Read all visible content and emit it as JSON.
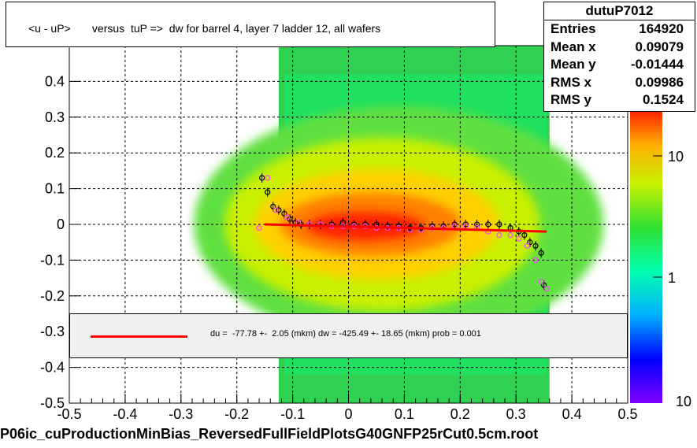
{
  "title": "<u - uP>       versus  tuP =>  dw for barrel 4, layer 7 ladder 12, all wafers",
  "stats": {
    "name": "dutuP7012",
    "rows": [
      {
        "label": "Entries",
        "value": "164920"
      },
      {
        "label": "Mean x",
        "value": "0.09079"
      },
      {
        "label": "Mean y",
        "value": "-0.01444"
      },
      {
        "label": "RMS x",
        "value": "0.09986"
      },
      {
        "label": "RMS y",
        "value": "0.1524"
      }
    ]
  },
  "fit": {
    "text": "du =  -77.78 +-  2.05 (mkm) dw = -425.49 +- 18.65 (mkm) prob = 0.001",
    "color": "#ff0000"
  },
  "footer": "P06ic_cuProductionMinBias_ReversedFullFieldPlotsG40GNFP25rCut0.5cm.root",
  "chart_data": {
    "type": "heatmap",
    "xlim": [
      -0.5,
      0.5
    ],
    "ylim": [
      -0.5,
      0.5
    ],
    "x_ticks": [
      "-0.5",
      "-0.4",
      "-0.3",
      "-0.2",
      "-0.1",
      "0",
      "0.1",
      "0.2",
      "0.3",
      "0.4",
      "0.5"
    ],
    "y_ticks": [
      "-0.5",
      "-0.4",
      "-0.3",
      "-0.2",
      "-0.1",
      "0",
      "0.1",
      "0.2",
      "0.3",
      "0.4"
    ],
    "grid": true,
    "z_scale": "log",
    "z_ticks": [
      "1",
      "10"
    ],
    "z_top_partial": "10",
    "fit_line": {
      "x": [
        -0.15,
        0.355
      ],
      "y": [
        0.0,
        -0.02
      ]
    },
    "profile_black": {
      "x": [
        -0.155,
        -0.145,
        -0.135,
        -0.125,
        -0.115,
        -0.105,
        -0.095,
        -0.085,
        -0.07,
        -0.05,
        -0.03,
        -0.01,
        0.01,
        0.03,
        0.05,
        0.07,
        0.09,
        0.11,
        0.13,
        0.15,
        0.17,
        0.19,
        0.21,
        0.23,
        0.25,
        0.27,
        0.29,
        0.305,
        0.315,
        0.325,
        0.335,
        0.345,
        0.35
      ],
      "y": [
        0.13,
        0.09,
        0.05,
        0.04,
        0.03,
        0.015,
        0.005,
        0.0,
        0.0,
        0.0,
        0.0,
        0.005,
        0.0,
        0.0,
        0.0,
        -0.005,
        -0.005,
        -0.01,
        -0.01,
        -0.005,
        -0.005,
        0.0,
        0.0,
        0.0,
        0.0,
        0.0,
        -0.01,
        -0.02,
        -0.03,
        -0.05,
        -0.06,
        -0.08,
        -0.17
      ]
    },
    "profile_pink": {
      "x": [
        -0.16,
        -0.145,
        -0.13,
        -0.11,
        -0.09,
        -0.07,
        -0.05,
        -0.03,
        -0.01,
        0.01,
        0.03,
        0.05,
        0.07,
        0.09,
        0.11,
        0.13,
        0.15,
        0.17,
        0.19,
        0.21,
        0.23,
        0.25,
        0.27,
        0.29,
        0.305,
        0.32,
        0.335,
        0.345,
        0.355
      ],
      "y": [
        -0.01,
        0.13,
        0.04,
        0.02,
        0.005,
        0.0,
        0.0,
        -0.005,
        -0.005,
        -0.005,
        -0.005,
        -0.01,
        -0.01,
        -0.01,
        -0.015,
        -0.015,
        -0.01,
        -0.01,
        -0.005,
        -0.005,
        -0.01,
        -0.02,
        -0.03,
        -0.03,
        -0.04,
        -0.06,
        -0.1,
        -0.16,
        -0.18
      ]
    }
  }
}
